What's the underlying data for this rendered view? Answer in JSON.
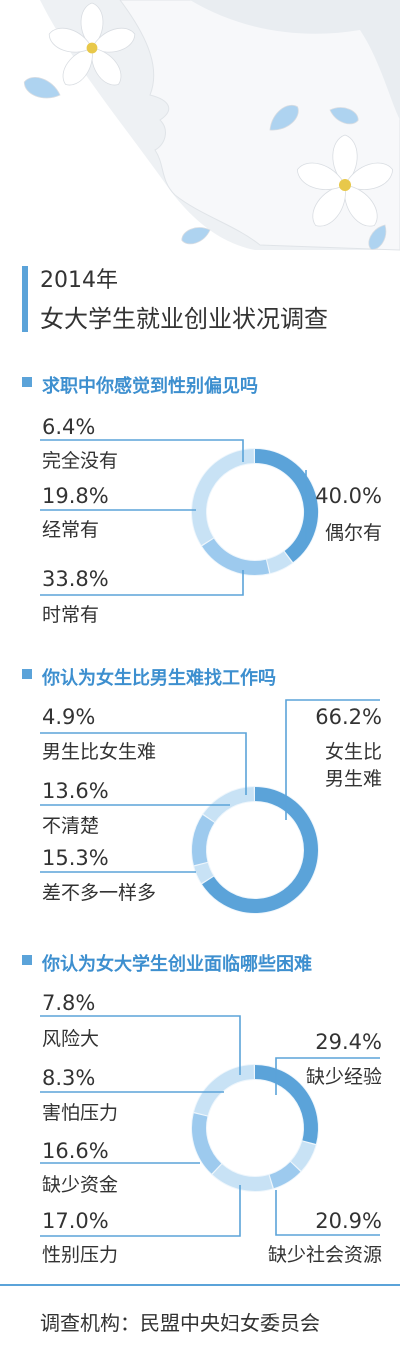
{
  "header": {
    "year": "2014年",
    "title": "女大学生就业创业状况调查"
  },
  "colors": {
    "accent": "#5ba3d9",
    "ring_light": "#c8e2f5",
    "ring_mid": "#9dcaee",
    "ring_dark": "#5ba3d9",
    "line": "#5ba3d9"
  },
  "chart_data": [
    {
      "type": "pie",
      "title": "求职中你感觉到性别偏见吗",
      "slices": [
        {
          "label": "偶尔有",
          "value": 40.0,
          "display": "40.0%"
        },
        {
          "label": "完全没有",
          "value": 6.4,
          "display": "6.4%"
        },
        {
          "label": "经常有",
          "value": 19.8,
          "display": "19.8%"
        },
        {
          "label": "时常有",
          "value": 33.8,
          "display": "33.8%"
        }
      ]
    },
    {
      "type": "pie",
      "title": "你认为女生比男生难找工作吗",
      "slices": [
        {
          "label": "女生比男生难",
          "value": 66.2,
          "display": "66.2%"
        },
        {
          "label": "男生比女生难",
          "value": 4.9,
          "display": "4.9%"
        },
        {
          "label": "不清楚",
          "value": 13.6,
          "display": "13.6%"
        },
        {
          "label": "差不多一样多",
          "value": 15.3,
          "display": "15.3%"
        }
      ]
    },
    {
      "type": "pie",
      "title": "你认为女大学生创业面临哪些困难",
      "slices": [
        {
          "label": "缺少经验",
          "value": 29.4,
          "display": "29.4%"
        },
        {
          "label": "风险大",
          "value": 7.8,
          "display": "7.8%"
        },
        {
          "label": "害怕压力",
          "value": 8.3,
          "display": "8.3%"
        },
        {
          "label": "缺少资金",
          "value": 16.6,
          "display": "16.6%"
        },
        {
          "label": "性别压力",
          "value": 17.0,
          "display": "17.0%"
        },
        {
          "label": "缺少社会资源",
          "value": 20.9,
          "display": "20.9%"
        }
      ]
    }
  ],
  "labels": {
    "c1_top_right_1": "偶尔有",
    "c2_right_line1": "女生比",
    "c2_right_line2": "男生难"
  },
  "footer": {
    "source": "调查机构：民盟中央妇女委员会"
  }
}
